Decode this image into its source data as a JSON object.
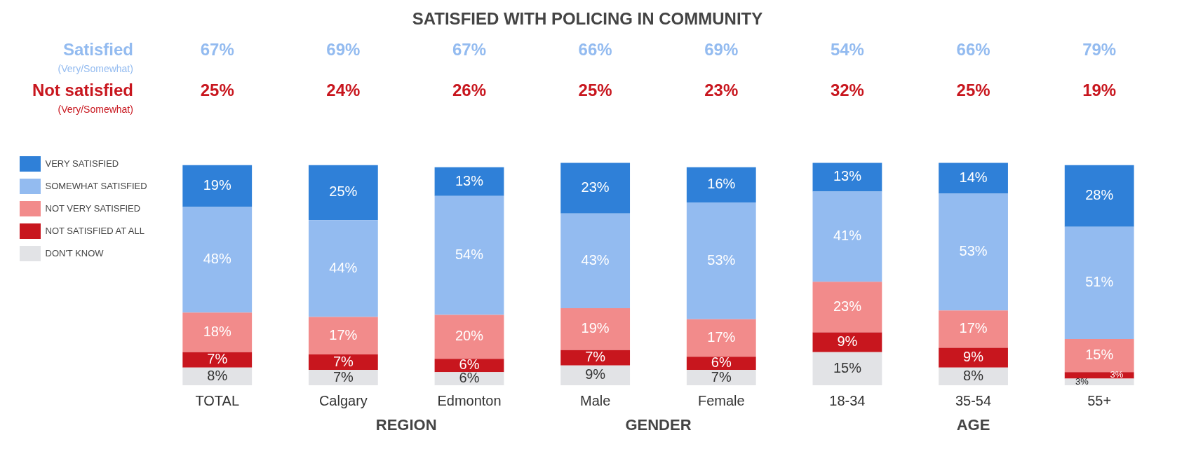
{
  "chart_data": {
    "type": "bar",
    "title": "SATISFIED WITH POLICING IN COMMUNITY",
    "stacked": true,
    "legend": "left",
    "tick_labels": "x",
    "categories": [
      "TOTAL",
      "Calgary",
      "Edmonton",
      "Male",
      "Female",
      "18-34",
      "35-54",
      "55+"
    ],
    "series": [
      {
        "name": "DON'T KNOW",
        "color": "#e2e3e6",
        "values": [
          8,
          7,
          6,
          9,
          7,
          15,
          8,
          3
        ],
        "value_labels": [
          "8%",
          "7%",
          "6%",
          "9%",
          "7%",
          "15%",
          "8%",
          "3%"
        ]
      },
      {
        "name": "NOT SATISFIED AT ALL",
        "color": "#c8161e",
        "values": [
          7,
          7,
          6,
          7,
          6,
          9,
          9,
          3
        ],
        "value_labels": [
          "7%",
          "7%",
          "6%",
          "7%",
          "6%",
          "9%",
          "9%",
          "3%"
        ]
      },
      {
        "name": "NOT VERY SATISFIED",
        "color": "#f28b8b",
        "values": [
          18,
          17,
          20,
          19,
          17,
          23,
          17,
          15
        ],
        "value_labels": [
          "18%",
          "17%",
          "20%",
          "19%",
          "17%",
          "23%",
          "17%",
          "15%"
        ]
      },
      {
        "name": "SOMEWHAT SATISFIED",
        "color": "#93bbf0",
        "values": [
          48,
          44,
          54,
          43,
          53,
          41,
          53,
          51
        ],
        "value_labels": [
          "48%",
          "44%",
          "54%",
          "43%",
          "53%",
          "41%",
          "53%",
          "51%"
        ]
      },
      {
        "name": "VERY SATISFIED",
        "color": "#2f80d8",
        "values": [
          19,
          25,
          13,
          23,
          16,
          13,
          14,
          28
        ],
        "value_labels": [
          "19%",
          "25%",
          "13%",
          "23%",
          "16%",
          "13%",
          "14%",
          "28%"
        ]
      }
    ],
    "annotations": [
      "Satisfied",
      "(Very/Somewhat)",
      "Not satisfied",
      "(Very/Somewhat)",
      "REGION",
      "GENDER",
      "AGE",
      "67%",
      "69%",
      "67%",
      "66%",
      "69%",
      "54%",
      "66%",
      "79%",
      "25%",
      "24%",
      "26%",
      "25%",
      "23%",
      "32%",
      "25%",
      "19%"
    ]
  }
}
